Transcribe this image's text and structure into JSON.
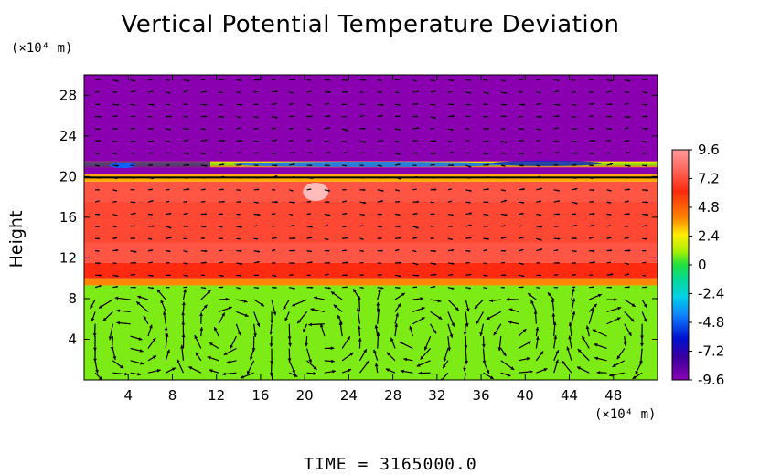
{
  "chart_data": {
    "type": "heatmap",
    "title": "Vertical Potential Temperature Deviation",
    "ylabel": "Height",
    "y_unit": "(×10⁴ m)",
    "x_unit": "(×10⁴ m)",
    "footer": "TIME = 3165000.0",
    "xlim": [
      0,
      52
    ],
    "ylim": [
      0,
      30
    ],
    "x_ticks": [
      "4",
      "8",
      "12",
      "16",
      "20",
      "24",
      "28",
      "32",
      "36",
      "40",
      "44",
      "48"
    ],
    "y_ticks": [
      "4",
      "8",
      "12",
      "16",
      "20",
      "24",
      "28"
    ],
    "colorbar": {
      "min": -9.6,
      "max": 9.6,
      "ticks": [
        "9.6",
        "7.2",
        "4.8",
        "2.4",
        "0",
        "-2.4",
        "-4.8",
        "-7.2",
        "-9.6"
      ]
    },
    "layers": [
      {
        "from": 0,
        "to": 9.3,
        "value": 0.8
      },
      {
        "from": 9.3,
        "to": 10.0,
        "value": 4.0
      },
      {
        "from": 10.0,
        "to": 11.5,
        "value": 6.2
      },
      {
        "from": 11.5,
        "to": 19.5,
        "value": 7.4
      },
      {
        "from": 19.5,
        "to": 20.2,
        "value": 3.5
      },
      {
        "from": 20.2,
        "to": 30,
        "value": -9.6
      }
    ],
    "vector_field": "wind vectors overlaid; circulation cells below height 9"
  }
}
